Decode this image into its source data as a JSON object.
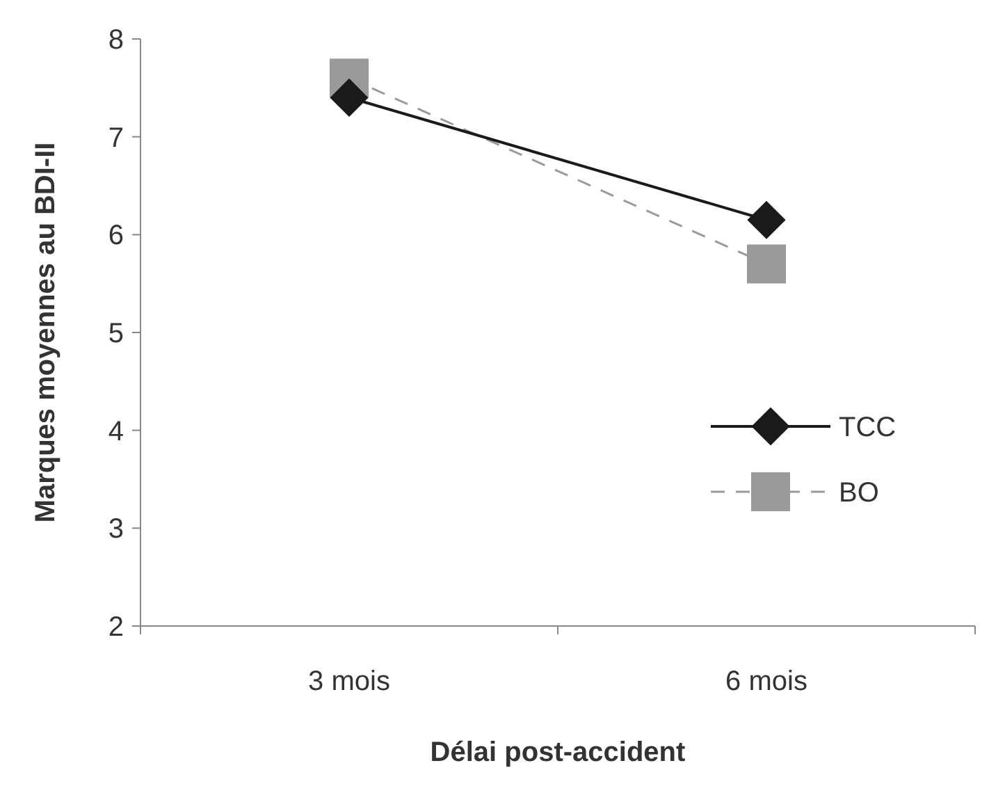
{
  "chart_data": {
    "type": "line",
    "xlabel": "Délai post-accident",
    "ylabel": "Marques moyennes au BDI-II",
    "categories": [
      "3 mois",
      "6 mois"
    ],
    "ylim": [
      2,
      8
    ],
    "yticks": [
      2,
      3,
      4,
      5,
      6,
      7,
      8
    ],
    "legend": "right",
    "grid": false,
    "series": [
      {
        "name": "TCC",
        "color": "#1a1a1a",
        "values": [
          7.4,
          6.15
        ],
        "marker": "diamond",
        "line_style": "solid"
      },
      {
        "name": "BO",
        "color": "#9a9a9a",
        "values": [
          7.6,
          5.7
        ],
        "marker": "square",
        "line_style": "dashed"
      }
    ]
  }
}
